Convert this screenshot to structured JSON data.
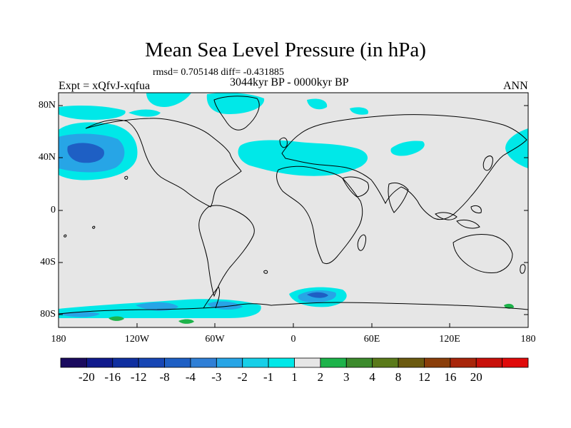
{
  "title": "Mean Sea Level Pressure (in hPa)",
  "stats": "rmsd= 0.705148  diff= -0.431885",
  "period": "3044kyr BP - 0000kyr BP",
  "experiment": "Expt = xQfvJ-xqfua",
  "season": "ANN",
  "lat_labels": [
    "80N",
    "40N",
    "0",
    "40S",
    "80S"
  ],
  "lon_labels": [
    "180",
    "120W",
    "60W",
    "0",
    "60E",
    "120E",
    "180"
  ],
  "colorbar": {
    "labels": [
      "-20",
      "-16",
      "-12",
      "-8",
      "-4",
      "-3",
      "-2",
      "-1",
      "1",
      "2",
      "3",
      "4",
      "8",
      "12",
      "16",
      "20"
    ],
    "colors": [
      "#1a0a5e",
      "#101a8c",
      "#0f2fa0",
      "#1746b4",
      "#1e5fc4",
      "#2f7fd6",
      "#27a5e6",
      "#17cfe8",
      "#00e8e8",
      "#e6e6e6",
      "#1db34a",
      "#3c8a2c",
      "#5a7a1a",
      "#6b5a10",
      "#8a3e0a",
      "#a8250a",
      "#c8100a",
      "#e00a0a"
    ]
  },
  "colors": {
    "land_ocean": "#e6e6e6",
    "weak_negative": "#00e8e8",
    "moderate_negative": "#27a5e6",
    "strong_negative": "#1e5fc4",
    "positive": "#1db34a"
  }
}
